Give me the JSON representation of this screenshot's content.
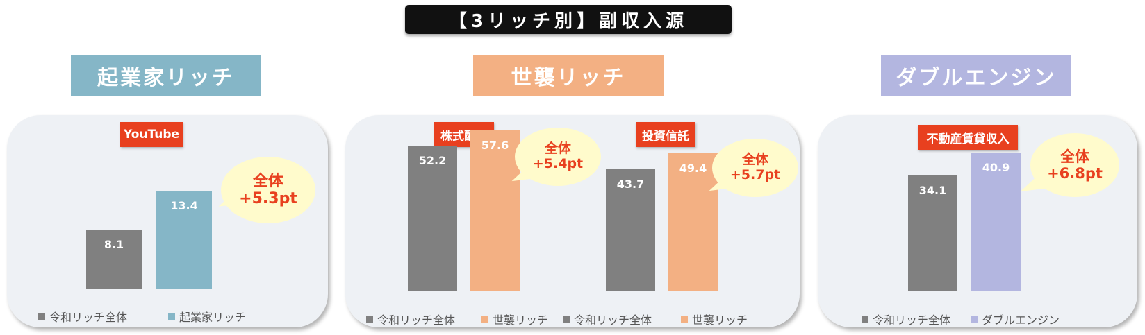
{
  "page_title": "【3リッチ別】副収入源",
  "colors": {
    "overall": "#808080",
    "entrepreneur": "#85b6c7",
    "hereditary": "#f3b083",
    "double_engine": "#b3b6e0",
    "category_label_bg": "#e8401f",
    "diff_text": "#e8401f",
    "bubble_bg": "#fffbcc"
  },
  "groups": [
    {
      "title": "起業家リッチ"
    },
    {
      "title": "世襲リッチ"
    },
    {
      "title": "ダブルエンジン"
    }
  ],
  "legend": {
    "overall": "令和リッチ全体",
    "entrepreneur": "起業家リッチ",
    "hereditary": "世襲リッチ",
    "double_engine": "ダブルエンジン"
  },
  "chart_data": [
    {
      "type": "bar",
      "group": "起業家リッチ",
      "categories": [
        "YouTube"
      ],
      "series": [
        {
          "name": "令和リッチ全体",
          "values": [
            8.1
          ]
        },
        {
          "name": "起業家リッチ",
          "values": [
            13.4
          ]
        }
      ],
      "annotations": [
        {
          "category": "YouTube",
          "line1": "全体",
          "line2": "+5.3pt"
        }
      ]
    },
    {
      "type": "bar",
      "group": "世襲リッチ",
      "categories": [
        "株式配当",
        "投資信託"
      ],
      "series": [
        {
          "name": "令和リッチ全体",
          "values": [
            52.2,
            43.7
          ]
        },
        {
          "name": "世襲リッチ",
          "values": [
            57.6,
            49.4
          ]
        }
      ],
      "annotations": [
        {
          "category": "株式配当",
          "line1": "全体",
          "line2": "+5.4pt"
        },
        {
          "category": "投資信託",
          "line1": "全体",
          "line2": "+5.7pt"
        }
      ]
    },
    {
      "type": "bar",
      "group": "ダブルエンジン",
      "categories": [
        "不動産賃貸収入"
      ],
      "series": [
        {
          "name": "令和リッチ全体",
          "values": [
            34.1
          ]
        },
        {
          "name": "ダブルエンジン",
          "values": [
            40.9
          ]
        }
      ],
      "annotations": [
        {
          "category": "不動産賃貸収入",
          "line1": "全体",
          "line2": "+6.8pt"
        }
      ]
    }
  ]
}
